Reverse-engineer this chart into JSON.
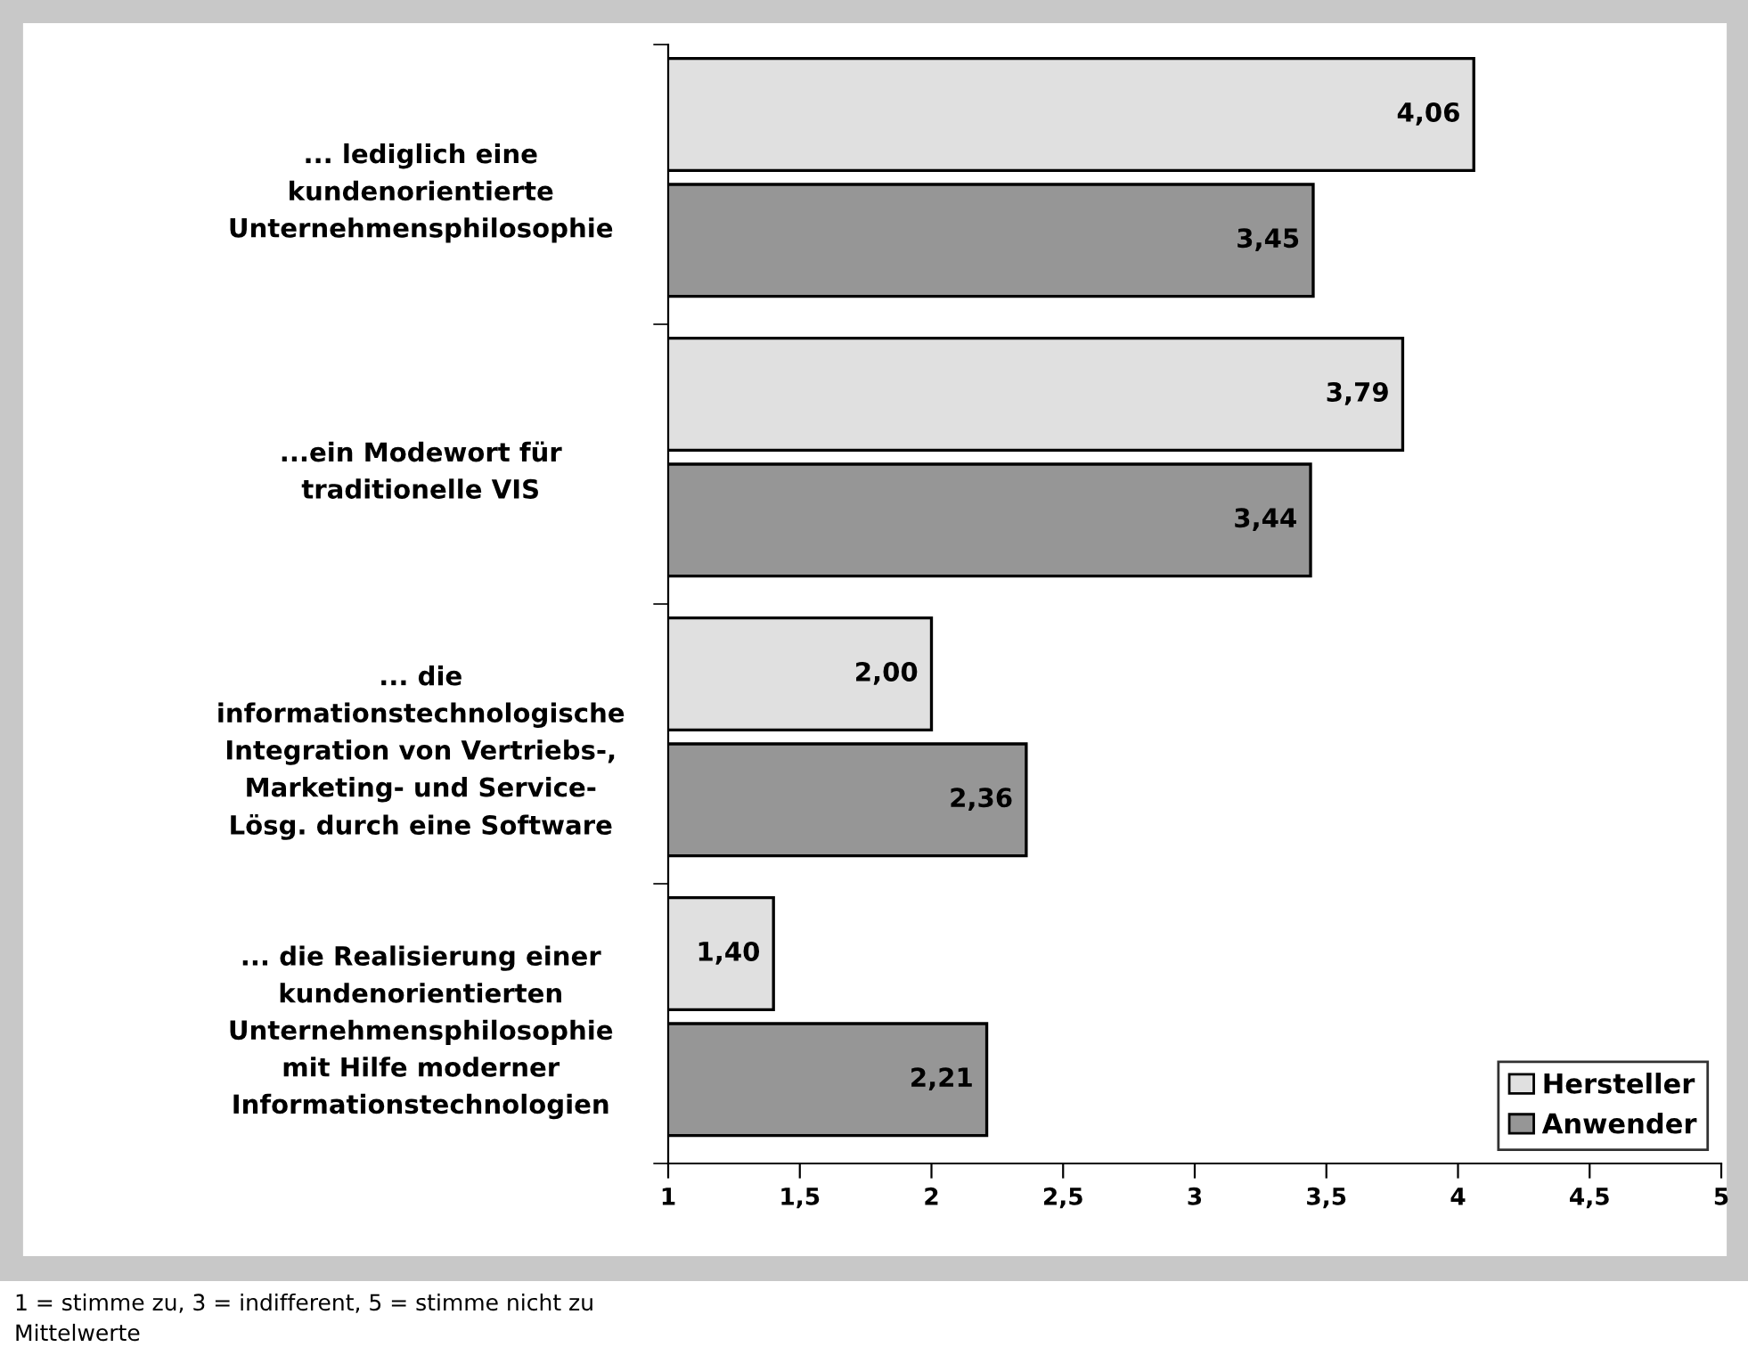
{
  "chart_data": {
    "type": "bar",
    "orientation": "horizontal",
    "categories": [
      "... lediglich eine\nkundenorientierte\nUnternehmensphilosophie",
      "...ein Modewort für\ntraditionelle VIS",
      "... die\ninformationstechnologische\nIntegration von Vertriebs-,\nMarketing- und Service-\nLösg. durch eine Software",
      "... die Realisierung einer\nkundenorientierten\nUnternehmensphilosophie\nmit Hilfe moderner\nInformationstechnologien"
    ],
    "series": [
      {
        "name": "Hersteller",
        "color": "#e0e0e0",
        "values": [
          4.06,
          3.79,
          2.0,
          1.4
        ],
        "value_labels": [
          "4,06",
          "3,79",
          "2,00",
          "1,40"
        ]
      },
      {
        "name": "Anwender",
        "color": "#969696",
        "values": [
          3.45,
          3.44,
          2.36,
          2.21
        ],
        "value_labels": [
          "3,45",
          "3,44",
          "2,36",
          "2,21"
        ]
      }
    ],
    "xlim": [
      1,
      5
    ],
    "xticks": [
      1,
      {
        "value": 1.5,
        "label": "1,5"
      },
      2,
      {
        "value": 2.5,
        "label": "2,5"
      },
      3,
      {
        "value": 3.5,
        "label": "3,5"
      },
      4,
      {
        "value": 4.5,
        "label": "4,5"
      },
      5
    ],
    "grid": false,
    "legend": "bottom right",
    "annotations": [
      "1 = stimme zu, 3 = indifferent, 5 = stimme nicht zu",
      "Mittelwerte"
    ]
  }
}
